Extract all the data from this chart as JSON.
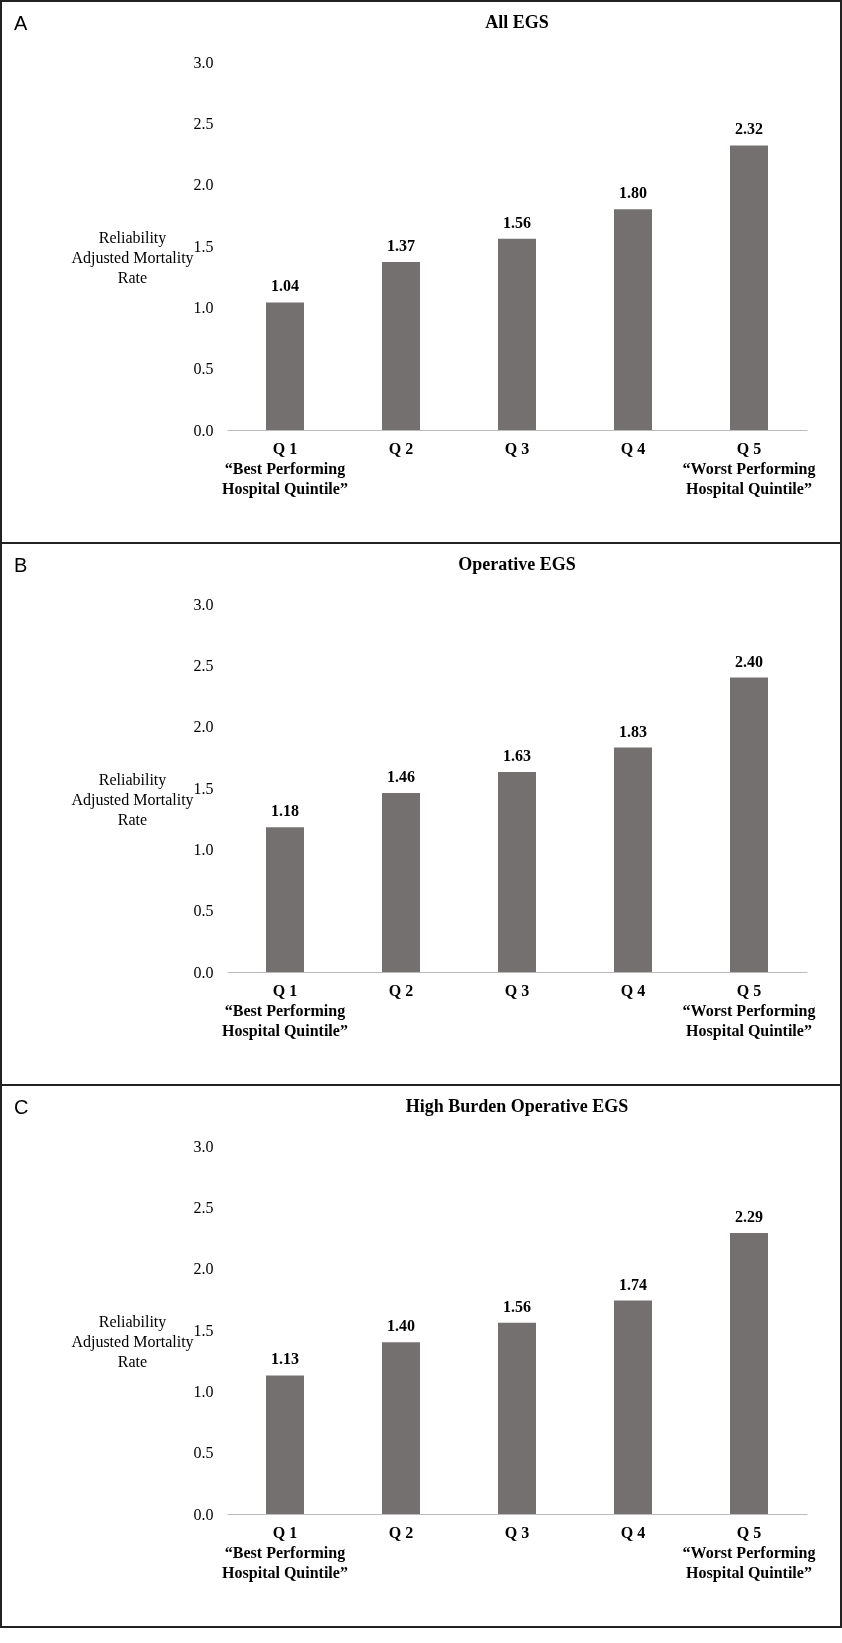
{
  "chart_data": [
    {
      "type": "bar",
      "title": "All EGS",
      "annotations": [
        "A"
      ],
      "ylabel": "Reliability\nAdjusted Mortality\nRate",
      "categories": [
        "Q 1\n“Best Performing\nHospital Quintile”",
        "Q 2",
        "Q 3",
        "Q 4",
        "Q 5\n“Worst Performing\nHospital Quintile”"
      ],
      "values": [
        1.04,
        1.37,
        1.56,
        1.8,
        2.32
      ],
      "value_labels": [
        "1.04",
        "1.37",
        "1.56",
        "1.80",
        "2.32"
      ],
      "color": "#757070",
      "ylim": [
        0,
        3
      ],
      "yticks": [
        {
          "value": 0,
          "label": "0.0"
        },
        {
          "value": 0.5,
          "label": "0.5"
        },
        {
          "value": 1,
          "label": "1.0"
        },
        {
          "value": 1.5,
          "label": "1.5"
        },
        {
          "value": 2,
          "label": "2.0"
        },
        {
          "value": 2.5,
          "label": "2.5"
        },
        {
          "value": 3,
          "label": "3.0"
        }
      ],
      "grid": false
    },
    {
      "type": "bar",
      "title": "Operative EGS",
      "annotations": [
        "B"
      ],
      "ylabel": "Reliability\nAdjusted Mortality\nRate",
      "categories": [
        "Q 1\n“Best Performing\nHospital Quintile”",
        "Q 2",
        "Q 3",
        "Q 4",
        "Q 5\n“Worst Performing\nHospital Quintile”"
      ],
      "values": [
        1.18,
        1.46,
        1.63,
        1.83,
        2.4
      ],
      "value_labels": [
        "1.18",
        "1.46",
        "1.63",
        "1.83",
        "2.40"
      ],
      "color": "#757070",
      "ylim": [
        0,
        3
      ],
      "yticks": [
        {
          "value": 0,
          "label": "0.0"
        },
        {
          "value": 0.5,
          "label": "0.5"
        },
        {
          "value": 1,
          "label": "1.0"
        },
        {
          "value": 1.5,
          "label": "1.5"
        },
        {
          "value": 2,
          "label": "2.0"
        },
        {
          "value": 2.5,
          "label": "2.5"
        },
        {
          "value": 3,
          "label": "3.0"
        }
      ],
      "grid": false
    },
    {
      "type": "bar",
      "title": "High Burden Operative EGS",
      "annotations": [
        "C"
      ],
      "ylabel": "Reliability\nAdjusted Mortality\nRate",
      "categories": [
        "Q 1\n“Best Performing\nHospital Quintile”",
        "Q 2",
        "Q 3",
        "Q 4",
        "Q 5\n“Worst Performing\nHospital Quintile”"
      ],
      "values": [
        1.13,
        1.4,
        1.56,
        1.74,
        2.29
      ],
      "value_labels": [
        "1.13",
        "1.40",
        "1.56",
        "1.74",
        "2.29"
      ],
      "color": "#757070",
      "ylim": [
        0,
        3
      ],
      "yticks": [
        {
          "value": 0,
          "label": "0.0"
        },
        {
          "value": 0.5,
          "label": "0.5"
        },
        {
          "value": 1,
          "label": "1.0"
        },
        {
          "value": 1.5,
          "label": "1.5"
        },
        {
          "value": 2,
          "label": "2.0"
        },
        {
          "value": 2.5,
          "label": "2.5"
        },
        {
          "value": 3,
          "label": "3.0"
        }
      ],
      "grid": false
    }
  ]
}
